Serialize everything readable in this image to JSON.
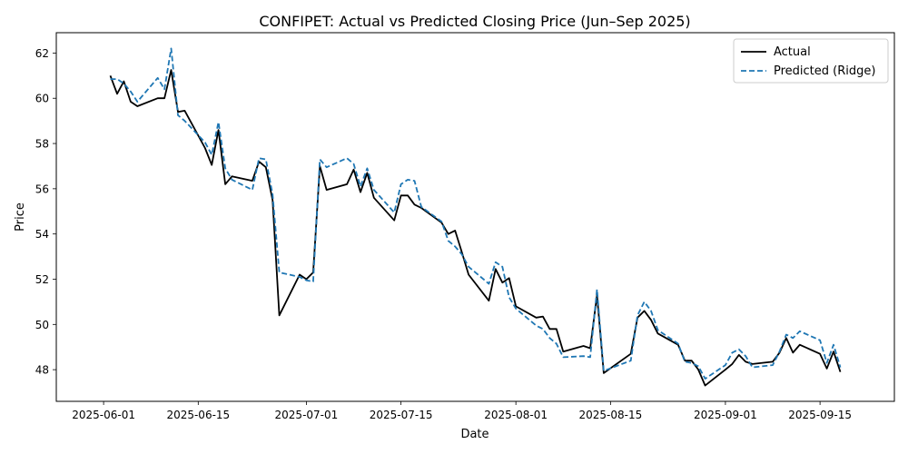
{
  "chart_data": {
    "type": "line",
    "title": "CONFIPET: Actual vs Predicted Closing Price (Jun–Sep 2025)",
    "xlabel": "Date",
    "ylabel": "Price",
    "xlim": [
      "2025-05-25",
      "2025-09-26"
    ],
    "ylim": [
      46.6,
      62.9
    ],
    "x_ticks": [
      "2025-06-01",
      "2025-06-15",
      "2025-07-01",
      "2025-07-15",
      "2025-08-01",
      "2025-08-15",
      "2025-09-01",
      "2025-09-15"
    ],
    "y_ticks": [
      48,
      50,
      52,
      54,
      56,
      58,
      60,
      62
    ],
    "grid": false,
    "legend": "top-right",
    "series": [
      {
        "name": "Actual",
        "color": "#000000",
        "style": "solid",
        "points": [
          [
            "2025-06-02",
            61.0
          ],
          [
            "2025-06-03",
            60.2
          ],
          [
            "2025-06-04",
            60.75
          ],
          [
            "2025-06-05",
            59.85
          ],
          [
            "2025-06-06",
            59.65
          ],
          [
            "2025-06-09",
            60.0
          ],
          [
            "2025-06-10",
            60.0
          ],
          [
            "2025-06-11",
            61.25
          ],
          [
            "2025-06-12",
            59.4
          ],
          [
            "2025-06-13",
            59.45
          ],
          [
            "2025-06-16",
            57.8
          ],
          [
            "2025-06-17",
            57.05
          ],
          [
            "2025-06-18",
            58.6
          ],
          [
            "2025-06-19",
            56.2
          ],
          [
            "2025-06-20",
            56.55
          ],
          [
            "2025-06-23",
            56.35
          ],
          [
            "2025-06-24",
            57.2
          ],
          [
            "2025-06-25",
            56.95
          ],
          [
            "2025-06-26",
            55.5
          ],
          [
            "2025-06-27",
            50.4
          ],
          [
            "2025-06-30",
            52.2
          ],
          [
            "2025-07-01",
            52.0
          ],
          [
            "2025-07-02",
            52.3
          ],
          [
            "2025-07-03",
            57.0
          ],
          [
            "2025-07-04",
            55.95
          ],
          [
            "2025-07-07",
            56.2
          ],
          [
            "2025-07-08",
            56.85
          ],
          [
            "2025-07-09",
            55.85
          ],
          [
            "2025-07-10",
            56.7
          ],
          [
            "2025-07-11",
            55.6
          ],
          [
            "2025-07-14",
            54.6
          ],
          [
            "2025-07-15",
            55.7
          ],
          [
            "2025-07-16",
            55.7
          ],
          [
            "2025-07-17",
            55.3
          ],
          [
            "2025-07-18",
            55.15
          ],
          [
            "2025-07-21",
            54.5
          ],
          [
            "2025-07-22",
            54.0
          ],
          [
            "2025-07-23",
            54.15
          ],
          [
            "2025-07-24",
            53.2
          ],
          [
            "2025-07-25",
            52.2
          ],
          [
            "2025-07-28",
            51.05
          ],
          [
            "2025-07-29",
            52.45
          ],
          [
            "2025-07-30",
            51.85
          ],
          [
            "2025-07-31",
            52.05
          ],
          [
            "2025-08-01",
            50.8
          ],
          [
            "2025-08-04",
            50.3
          ],
          [
            "2025-08-05",
            50.35
          ],
          [
            "2025-08-06",
            49.8
          ],
          [
            "2025-08-07",
            49.8
          ],
          [
            "2025-08-08",
            48.8
          ],
          [
            "2025-08-11",
            49.05
          ],
          [
            "2025-08-12",
            48.95
          ],
          [
            "2025-08-13",
            51.3
          ],
          [
            "2025-08-14",
            47.85
          ],
          [
            "2025-08-18",
            48.7
          ],
          [
            "2025-08-19",
            50.3
          ],
          [
            "2025-08-20",
            50.6
          ],
          [
            "2025-08-21",
            50.2
          ],
          [
            "2025-08-22",
            49.6
          ],
          [
            "2025-08-25",
            49.1
          ],
          [
            "2025-08-26",
            48.4
          ],
          [
            "2025-08-27",
            48.4
          ],
          [
            "2025-08-28",
            48.0
          ],
          [
            "2025-08-29",
            47.3
          ],
          [
            "2025-09-01",
            48.0
          ],
          [
            "2025-09-02",
            48.25
          ],
          [
            "2025-09-03",
            48.65
          ],
          [
            "2025-09-04",
            48.35
          ],
          [
            "2025-09-05",
            48.25
          ],
          [
            "2025-09-08",
            48.35
          ],
          [
            "2025-09-09",
            48.75
          ],
          [
            "2025-09-10",
            49.4
          ],
          [
            "2025-09-11",
            48.75
          ],
          [
            "2025-09-12",
            49.1
          ],
          [
            "2025-09-15",
            48.7
          ],
          [
            "2025-09-16",
            48.05
          ],
          [
            "2025-09-17",
            48.8
          ],
          [
            "2025-09-18",
            47.9
          ]
        ]
      },
      {
        "name": "Predicted (Ridge)",
        "color": "#1f77b4",
        "style": "dashed",
        "points": [
          [
            "2025-06-02",
            60.85
          ],
          [
            "2025-06-03",
            60.85
          ],
          [
            "2025-06-04",
            60.65
          ],
          [
            "2025-06-05",
            60.3
          ],
          [
            "2025-06-06",
            59.85
          ],
          [
            "2025-06-09",
            60.9
          ],
          [
            "2025-06-10",
            60.4
          ],
          [
            "2025-06-11",
            62.2
          ],
          [
            "2025-06-12",
            59.25
          ],
          [
            "2025-06-13",
            59.0
          ],
          [
            "2025-06-16",
            58.05
          ],
          [
            "2025-06-17",
            57.5
          ],
          [
            "2025-06-18",
            58.95
          ],
          [
            "2025-06-19",
            56.9
          ],
          [
            "2025-06-20",
            56.4
          ],
          [
            "2025-06-23",
            55.95
          ],
          [
            "2025-06-24",
            57.35
          ],
          [
            "2025-06-25",
            57.3
          ],
          [
            "2025-06-26",
            55.75
          ],
          [
            "2025-06-27",
            52.3
          ],
          [
            "2025-06-30",
            52.1
          ],
          [
            "2025-07-01",
            51.95
          ],
          [
            "2025-07-02",
            51.9
          ],
          [
            "2025-07-03",
            57.3
          ],
          [
            "2025-07-04",
            56.95
          ],
          [
            "2025-07-07",
            57.35
          ],
          [
            "2025-07-08",
            57.1
          ],
          [
            "2025-07-09",
            56.1
          ],
          [
            "2025-07-10",
            56.9
          ],
          [
            "2025-07-11",
            55.95
          ],
          [
            "2025-07-14",
            54.95
          ],
          [
            "2025-07-15",
            56.2
          ],
          [
            "2025-07-16",
            56.4
          ],
          [
            "2025-07-17",
            56.35
          ],
          [
            "2025-07-18",
            55.2
          ],
          [
            "2025-07-21",
            54.55
          ],
          [
            "2025-07-22",
            53.7
          ],
          [
            "2025-07-23",
            53.45
          ],
          [
            "2025-07-24",
            53.1
          ],
          [
            "2025-07-25",
            52.55
          ],
          [
            "2025-07-28",
            51.8
          ],
          [
            "2025-07-29",
            52.75
          ],
          [
            "2025-07-30",
            52.55
          ],
          [
            "2025-07-31",
            51.2
          ],
          [
            "2025-08-01",
            50.7
          ],
          [
            "2025-08-04",
            49.95
          ],
          [
            "2025-08-05",
            49.8
          ],
          [
            "2025-08-06",
            49.4
          ],
          [
            "2025-08-07",
            49.15
          ],
          [
            "2025-08-08",
            48.55
          ],
          [
            "2025-08-11",
            48.6
          ],
          [
            "2025-08-12",
            48.55
          ],
          [
            "2025-08-13",
            51.55
          ],
          [
            "2025-08-14",
            47.95
          ],
          [
            "2025-08-18",
            48.4
          ],
          [
            "2025-08-19",
            50.4
          ],
          [
            "2025-08-20",
            51.0
          ],
          [
            "2025-08-21",
            50.6
          ],
          [
            "2025-08-22",
            49.75
          ],
          [
            "2025-08-25",
            49.15
          ],
          [
            "2025-08-26",
            48.35
          ],
          [
            "2025-08-27",
            48.3
          ],
          [
            "2025-08-28",
            48.15
          ],
          [
            "2025-08-29",
            47.6
          ],
          [
            "2025-09-01",
            48.2
          ],
          [
            "2025-09-02",
            48.75
          ],
          [
            "2025-09-03",
            48.9
          ],
          [
            "2025-09-04",
            48.6
          ],
          [
            "2025-09-05",
            48.1
          ],
          [
            "2025-09-08",
            48.2
          ],
          [
            "2025-09-09",
            48.8
          ],
          [
            "2025-09-10",
            49.55
          ],
          [
            "2025-09-11",
            49.4
          ],
          [
            "2025-09-12",
            49.7
          ],
          [
            "2025-09-15",
            49.3
          ],
          [
            "2025-09-16",
            48.3
          ],
          [
            "2025-09-17",
            49.1
          ],
          [
            "2025-09-18",
            48.1
          ]
        ]
      }
    ]
  }
}
